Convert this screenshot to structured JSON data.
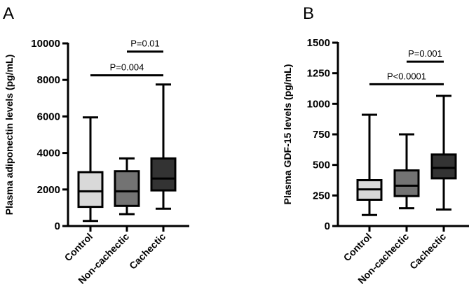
{
  "chart_data": [
    {
      "type": "box",
      "panel_label": "A",
      "ylabel": "Plasma adiponectin levels (pg/mL)",
      "ylim": [
        0,
        10000
      ],
      "yticks": [
        0,
        2000,
        4000,
        6000,
        8000,
        10000
      ],
      "yticklabels": [
        "0",
        "2000",
        "4000",
        "6000",
        "8000",
        "10000"
      ],
      "categories": [
        "Control",
        "Non-cachectic",
        "Cachectic"
      ],
      "boxes": [
        {
          "min": 280,
          "q1": 1050,
          "median": 1900,
          "q3": 2950,
          "max": 5950,
          "color": "#d9d9d9"
        },
        {
          "min": 650,
          "q1": 1100,
          "median": 1900,
          "q3": 3000,
          "max": 3700,
          "color": "#737373"
        },
        {
          "min": 950,
          "q1": 1950,
          "median": 2600,
          "q3": 3700,
          "max": 7750,
          "color": "#333333"
        }
      ],
      "comparisons": [
        {
          "from": 0,
          "to": 2,
          "label": "P=0.004",
          "y": 8250
        },
        {
          "from": 1,
          "to": 2,
          "label": "P=0.01",
          "y": 9550
        }
      ]
    },
    {
      "type": "box",
      "panel_label": "B",
      "ylabel": "Plasma GDF-15 levels (pg/mL)",
      "ylim": [
        0,
        1500
      ],
      "yticks": [
        0,
        250,
        500,
        750,
        1000,
        1250,
        1500
      ],
      "yticklabels": [
        "0",
        "250",
        "500",
        "750",
        "1000",
        "1250",
        "1500"
      ],
      "categories": [
        "Control",
        "Non-cachectic",
        "Cachectic"
      ],
      "boxes": [
        {
          "min": 90,
          "q1": 215,
          "median": 300,
          "q3": 375,
          "max": 910,
          "color": "#d9d9d9"
        },
        {
          "min": 145,
          "q1": 245,
          "median": 330,
          "q3": 455,
          "max": 750,
          "color": "#737373"
        },
        {
          "min": 135,
          "q1": 390,
          "median": 475,
          "q3": 585,
          "max": 1065,
          "color": "#333333"
        }
      ],
      "comparisons": [
        {
          "from": 0,
          "to": 2,
          "label": "P<0.0001",
          "y": 1160
        },
        {
          "from": 1,
          "to": 2,
          "label": "P=0.001",
          "y": 1345
        }
      ]
    }
  ]
}
